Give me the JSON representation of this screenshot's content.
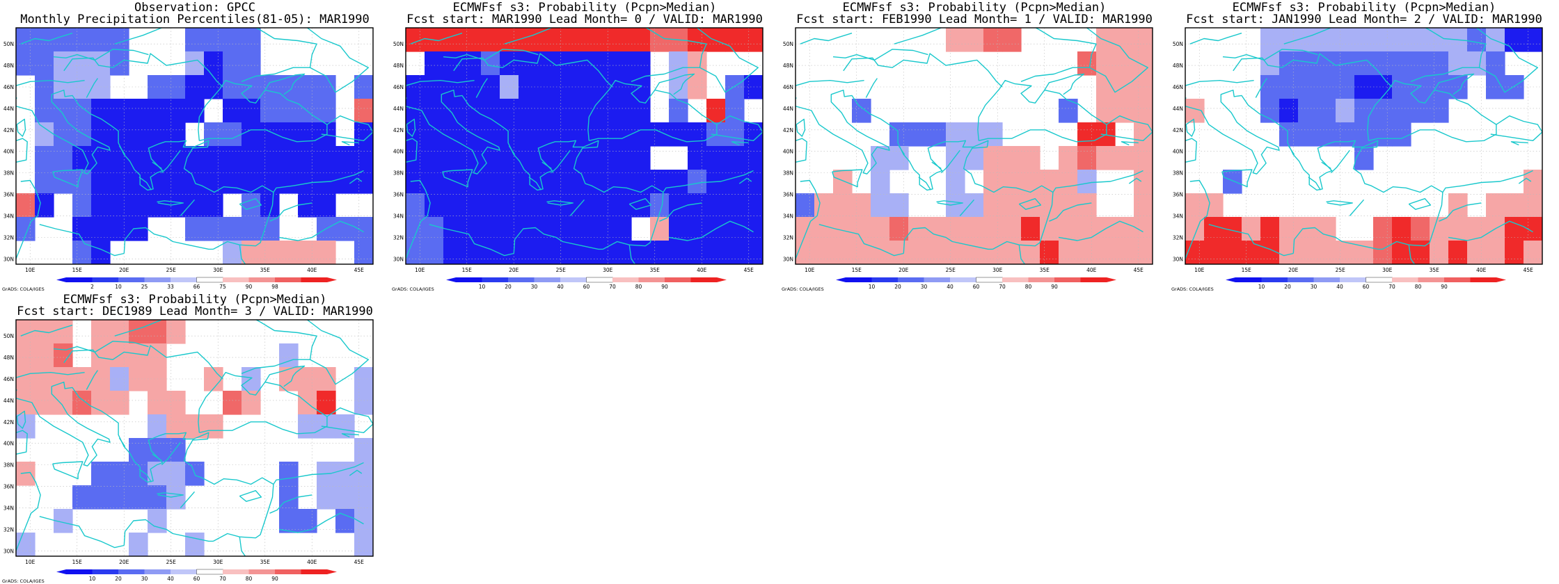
{
  "panels": [
    {
      "title_line1": "Observation: GPCC",
      "title_line2": "Monthly Precipitation Percentiles(81-05): MAR1990",
      "colorbar_ticks": [
        "2",
        "10",
        "25",
        "33",
        "66",
        "75",
        "90",
        "98"
      ],
      "grid": [
        "kkkkkkwwwkkkkwwwwww",
        "kklllkwwwlbkkwwwwww",
        "wklllwwkkbbkkkkkkwk",
        "wkkkbbbbbbwbbkkkkwr",
        "wlkkbbbbbwkkbbbbbwb",
        "wkkbbbbbbbbbbbbbbbb",
        "wkkkbbbbbbbbbbbbbbb",
        "rbwkbbbbbbbwkbwbbww",
        "kwwbbbbwwkkkkkwwkkk",
        "wwwkbwwwwwwlpppppwk"
      ],
      "credit": "GrADS: COLA/IGES"
    },
    {
      "title_line1": "ECMWFsf s3: Probability (Pcpn>Median)",
      "title_line2": "Fcst start: MAR1990  Lead Month= 0 / VALID: MAR1990",
      "colorbar_ticks": [
        "10",
        "20",
        "30",
        "40",
        "60",
        "70",
        "80",
        "90"
      ],
      "grid": [
        "RRRRRRRRRRRRRrrRRRR",
        "wbbbkbbbbbbbbwlpwww",
        "bbbbblbbbbbbbwlpwkb",
        "bbbbbbbbbbbbbwkwRkw",
        "bbbbbbbbbbbbbbbbkkb",
        "bbbbbbbbbbbbbwwbbbb",
        "bbbbbbbbbbbbbbbkbbb",
        "kbbbbbbbbbbbbkbbbbb",
        "kkbbbbbbbbbbwpbbbbb",
        "kkbbbbbbbbbbbbbbbbb"
      ],
      "credit": "GrADS: COLA/IGES"
    },
    {
      "title_line1": "ECMWFsf s3: Probability (Pcpn>Median)",
      "title_line2": "Fcst start: FEB1990  Lead Month= 1 / VALID: MAR1990",
      "colorbar_ticks": [
        "10",
        "20",
        "30",
        "40",
        "60",
        "70",
        "80",
        "90"
      ],
      "grid": [
        "wwwwwwwwpprrwwwwppp",
        "wwwwwwwwwwwwwwwrppp",
        "wwwwwwwwwwwwwwwwppp",
        "wwwkwwwwwwwwwwkwppp",
        "wwwwwkkklllwwwwRRwp",
        "wwwwllwwllpppwprppp",
        "wwpwlwwwlwppppplwwp",
        "kpppllwwllppppppwwp",
        "ppppprppppppRpppppp",
        "pppppppppppppRppppp"
      ],
      "credit": "GrADS: COLA/IGES"
    },
    {
      "title_line1": "ECMWFsf s3: Probability (Pcpn>Median)",
      "title_line2": "Fcst start: JAN1990  Lead Month= 2 / VALID: MAR1990",
      "colorbar_ticks": [
        "10",
        "20",
        "30",
        "40",
        "60",
        "70",
        "80",
        "90"
      ],
      "grid": [
        "wwwwlllllllllllklbb",
        "wwwwlkkkkkkkkkllkww",
        "wwwwkkkkkbbkkkkwkkw",
        "pwwwkbkklkkkkkwwwww",
        "wwwwwkkkkkkkwwwwwww",
        "wwwwwwwwwkwwwwwwwww",
        "wwkwwwwwwwwwwwwwwwp",
        "ppwwwwwwwwwwwwpwppp",
        "pRRpRpppwwrRrppppRR",
        "RRRRRppppprRRpRppRp"
      ],
      "credit": "GrADS: COLA/IGES"
    },
    {
      "title_line1": "ECMWFsf s3: Probability (Pcpn>Median)",
      "title_line2": "Fcst start: DEC1989  Lead Month= 3 / VALID: MAR1990",
      "colorbar_ticks": [
        "10",
        "20",
        "30",
        "40",
        "60",
        "70",
        "80",
        "90"
      ],
      "grid": [
        "pppwpprrpwwwwwwwwww",
        "pprwppppwwwwwwlwwww",
        "ppppplppwwpwlwpppwl",
        "ppprppwppwwrpwwpRwl",
        "lwwwwwwlpppwwwwlllw",
        "wwwwwwkkkwwwwwwwwwl",
        "pwwwkkkllkwwwwkwlll",
        "wwwkkkkklwwwwwkwlll",
        "wwlwwwwlwwwwwwkkwkl",
        "lwwwwwlwwlwwwwwwwwl"
      ],
      "credit": "GrADS: COLA/IGES"
    }
  ],
  "lat_labels": [
    "30N",
    "32N",
    "34N",
    "36N",
    "38N",
    "40N",
    "42N",
    "44N",
    "46N",
    "48N",
    "50N"
  ],
  "lon_labels": [
    "10E",
    "15E",
    "20E",
    "25E",
    "30E",
    "35E",
    "40E",
    "45E"
  ],
  "palette": {
    "b": "#1c1cf0",
    "k": "#5a6cf2",
    "l": "#a8b0f6",
    "w": "#ffffff",
    "p": "#f6a6a6",
    "r": "#f06868",
    "R": "#f02a2a",
    "coast": "#19c8cc",
    "grid": "#bbbbbb"
  }
}
